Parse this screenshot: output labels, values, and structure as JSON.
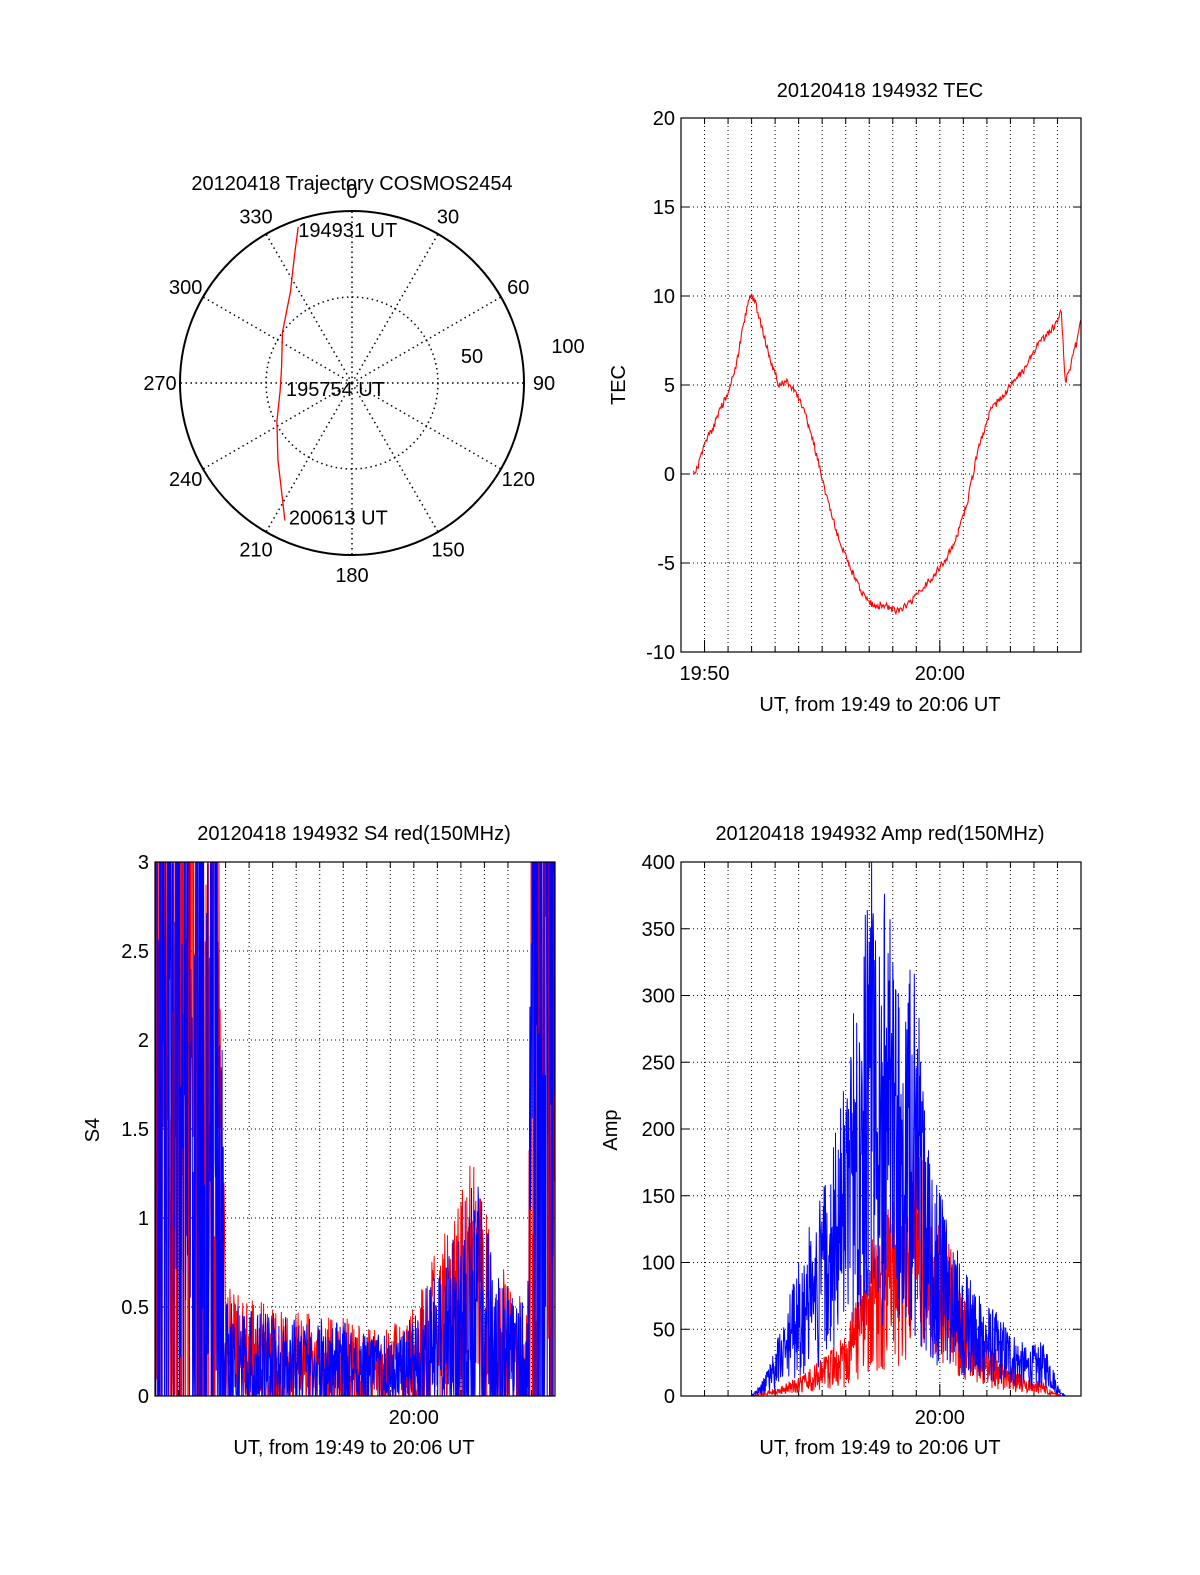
{
  "colors": {
    "red": "#ff0000",
    "blue": "#0000ff",
    "axis": "#000000",
    "grid": "#000000",
    "background": "#ffffff"
  },
  "chart_data": [
    {
      "id": "trajectory",
      "type": "polar",
      "title": "20120418 Trajectory COSMOS2454",
      "azimuth_labels": [
        "0",
        "30",
        "60",
        "90",
        "120",
        "150",
        "180",
        "210",
        "240",
        "270",
        "300",
        "330"
      ],
      "azimuth_values": [
        0,
        30,
        60,
        90,
        120,
        150,
        180,
        210,
        240,
        270,
        300,
        330
      ],
      "radius_labels": [
        "50",
        "100"
      ],
      "radius_values": [
        50,
        100
      ],
      "radius_range": [
        0,
        100
      ],
      "grid": true,
      "series": [
        {
          "color": "#ff0000",
          "points": [
            {
              "az": 341,
              "r": 96
            },
            {
              "az": 336,
              "r": 82
            },
            {
              "az": 326,
              "r": 64
            },
            {
              "az": 306,
              "r": 50
            },
            {
              "az": 283,
              "r": 42
            },
            {
              "az": 264,
              "r": 42
            },
            {
              "az": 243,
              "r": 49
            },
            {
              "az": 224,
              "r": 62
            },
            {
              "az": 206,
              "r": 89
            }
          ]
        }
      ],
      "annotations": [
        "194931 UT",
        "195754 UT",
        "200613 UT"
      ]
    },
    {
      "id": "tec",
      "type": "line",
      "title": "20120418 194932 TEC",
      "xlabel": "UT, from 19:49 to 20:06 UT",
      "ylabel": "TEC",
      "xlim": [
        "19:49",
        "20:06"
      ],
      "ylim": [
        -10,
        20
      ],
      "yticks": [
        "-10",
        "-5",
        "0",
        "5",
        "10",
        "15",
        "20"
      ],
      "xticks": [
        {
          "x": "19:50",
          "label": "19:50"
        },
        {
          "x": "20:00",
          "label": "20:00"
        }
      ],
      "grid": true,
      "series": [
        {
          "color": "#ff0000",
          "points": [
            [
              "19:49:32",
              0.0
            ],
            [
              "19:49:45",
              0.5
            ],
            [
              "19:50:00",
              1.8
            ],
            [
              "19:50:20",
              2.5
            ],
            [
              "19:50:40",
              3.6
            ],
            [
              "19:51:00",
              4.6
            ],
            [
              "19:51:20",
              6.0
            ],
            [
              "19:51:40",
              8.5
            ],
            [
              "19:51:55",
              10.1
            ],
            [
              "19:52:10",
              9.6
            ],
            [
              "19:52:30",
              7.9
            ],
            [
              "19:52:50",
              6.2
            ],
            [
              "19:53:10",
              5.0
            ],
            [
              "19:53:30",
              5.2
            ],
            [
              "19:53:50",
              4.6
            ],
            [
              "19:54:10",
              3.8
            ],
            [
              "19:54:30",
              2.4
            ],
            [
              "19:54:50",
              0.7
            ],
            [
              "19:55:10",
              -1.2
            ],
            [
              "19:55:40",
              -3.5
            ],
            [
              "19:56:10",
              -5.2
            ],
            [
              "19:56:40",
              -6.6
            ],
            [
              "19:57:10",
              -7.4
            ],
            [
              "19:57:40",
              -7.4
            ],
            [
              "19:58:10",
              -7.7
            ],
            [
              "19:58:40",
              -7.3
            ],
            [
              "19:59:10",
              -6.6
            ],
            [
              "19:59:40",
              -5.8
            ],
            [
              "20:00:10",
              -5.0
            ],
            [
              "20:00:40",
              -3.8
            ],
            [
              "20:01:10",
              -1.6
            ],
            [
              "20:01:40",
              1.6
            ],
            [
              "20:02:10",
              3.6
            ],
            [
              "20:02:40",
              4.4
            ],
            [
              "20:03:10",
              5.2
            ],
            [
              "20:03:40",
              6.0
            ],
            [
              "20:04:10",
              7.3
            ],
            [
              "20:04:40",
              8.0
            ],
            [
              "20:05:00",
              8.5
            ],
            [
              "20:05:10",
              9.2
            ],
            [
              "20:05:15",
              7.0
            ],
            [
              "20:05:20",
              5.2
            ],
            [
              "20:05:30",
              5.8
            ],
            [
              "20:05:40",
              6.9
            ],
            [
              "20:05:50",
              7.4
            ],
            [
              "20:06:00",
              8.8
            ]
          ]
        }
      ]
    },
    {
      "id": "s4",
      "type": "line",
      "title": "20120418 194932 S4 red(150MHz)",
      "xlabel": "UT, from 19:49 to 20:06 UT",
      "ylabel": "S4",
      "xlim": [
        "19:49",
        "20:06"
      ],
      "ylim": [
        0,
        3
      ],
      "yticks": [
        "0",
        "0.5",
        "1",
        "1.5",
        "2",
        "2.5",
        "3"
      ],
      "xticks": [
        {
          "x": "20:00",
          "label": "20:00"
        }
      ],
      "grid": true,
      "series": [
        {
          "color": "#ff0000",
          "points": [
            [
              "19:49:00",
              1.7
            ],
            [
              "19:50:00",
              1.8
            ],
            [
              "19:51:00",
              1.6
            ],
            [
              "19:51:40",
              1.3
            ],
            [
              "19:52:00",
              0.22
            ],
            [
              "19:53:00",
              0.2
            ],
            [
              "19:54:00",
              0.19
            ],
            [
              "19:55:00",
              0.18
            ],
            [
              "19:56:00",
              0.17
            ],
            [
              "19:57:00",
              0.16
            ],
            [
              "19:58:00",
              0.15
            ],
            [
              "19:59:00",
              0.14
            ],
            [
              "19:59:40",
              0.16
            ],
            [
              "20:00:20",
              0.22
            ],
            [
              "20:01:00",
              0.3
            ],
            [
              "20:01:40",
              0.36
            ],
            [
              "20:02:20",
              0.45
            ],
            [
              "20:02:40",
              0.55
            ],
            [
              "20:03:00",
              0.38
            ],
            [
              "20:03:40",
              0.28
            ],
            [
              "20:04:20",
              0.2
            ],
            [
              "20:04:50",
              0.22
            ],
            [
              "20:05:10",
              2.4
            ],
            [
              "20:06:00",
              2.6
            ]
          ]
        },
        {
          "color": "#0000ff",
          "points": [
            [
              "19:49:00",
              1.6
            ],
            [
              "19:50:00",
              1.7
            ],
            [
              "19:51:00",
              1.65
            ],
            [
              "19:51:40",
              1.4
            ],
            [
              "19:52:00",
              0.2
            ],
            [
              "19:53:00",
              0.18
            ],
            [
              "19:54:00",
              0.17
            ],
            [
              "19:55:00",
              0.17
            ],
            [
              "19:56:00",
              0.16
            ],
            [
              "19:57:00",
              0.15
            ],
            [
              "19:58:00",
              0.13
            ],
            [
              "19:59:00",
              0.12
            ],
            [
              "19:59:40",
              0.14
            ],
            [
              "20:00:20",
              0.2
            ],
            [
              "20:01:00",
              0.26
            ],
            [
              "20:01:40",
              0.33
            ],
            [
              "20:02:20",
              0.42
            ],
            [
              "20:02:40",
              0.47
            ],
            [
              "20:03:00",
              0.35
            ],
            [
              "20:03:40",
              0.26
            ],
            [
              "20:04:20",
              0.18
            ],
            [
              "20:04:50",
              0.2
            ],
            [
              "20:05:10",
              2.2
            ],
            [
              "20:06:00",
              2.5
            ]
          ]
        }
      ]
    },
    {
      "id": "amp",
      "type": "line",
      "title": "20120418 194932 Amp red(150MHz)",
      "xlabel": "UT, from 19:49 to 20:06 UT",
      "ylabel": "Amp",
      "xlim": [
        "19:49",
        "20:06"
      ],
      "ylim": [
        0,
        400
      ],
      "yticks": [
        "0",
        "50",
        "100",
        "150",
        "200",
        "250",
        "300",
        "350",
        "400"
      ],
      "xticks": [
        {
          "x": "20:00",
          "label": "20:00"
        }
      ],
      "grid": true,
      "series": [
        {
          "color": "#ff0000",
          "points": [
            [
              "19:49:30",
              0
            ],
            [
              "19:52:00",
              0
            ],
            [
              "19:53:00",
              3
            ],
            [
              "19:54:00",
              8
            ],
            [
              "19:55:00",
              15
            ],
            [
              "19:56:00",
              25
            ],
            [
              "19:56:40",
              50
            ],
            [
              "19:57:20",
              70
            ],
            [
              "19:58:00",
              85
            ],
            [
              "19:58:40",
              90
            ],
            [
              "19:59:00",
              110
            ],
            [
              "19:59:40",
              85
            ],
            [
              "20:00:20",
              65
            ],
            [
              "20:01:00",
              45
            ],
            [
              "20:01:40",
              30
            ],
            [
              "20:02:20",
              20
            ],
            [
              "20:03:00",
              12
            ],
            [
              "20:03:40",
              8
            ],
            [
              "20:04:20",
              6
            ],
            [
              "20:04:50",
              2
            ],
            [
              "20:05:10",
              0
            ]
          ]
        },
        {
          "color": "#0000ff",
          "points": [
            [
              "19:49:30",
              0
            ],
            [
              "19:52:00",
              0
            ],
            [
              "19:52:40",
              10
            ],
            [
              "19:53:20",
              30
            ],
            [
              "19:54:00",
              55
            ],
            [
              "19:54:40",
              75
            ],
            [
              "19:55:20",
              95
            ],
            [
              "19:56:00",
              135
            ],
            [
              "19:56:40",
              190
            ],
            [
              "19:57:00",
              250
            ],
            [
              "19:57:20",
              170
            ],
            [
              "19:57:40",
              210
            ],
            [
              "19:58:00",
              195
            ],
            [
              "19:58:20",
              160
            ],
            [
              "19:58:40",
              180
            ],
            [
              "19:59:00",
              175
            ],
            [
              "19:59:20",
              120
            ],
            [
              "19:59:40",
              95
            ],
            [
              "20:00:20",
              72
            ],
            [
              "20:01:00",
              55
            ],
            [
              "20:01:40",
              42
            ],
            [
              "20:02:20",
              35
            ],
            [
              "20:03:00",
              28
            ],
            [
              "20:03:40",
              20
            ],
            [
              "20:04:20",
              22
            ],
            [
              "20:04:40",
              18
            ],
            [
              "20:05:00",
              5
            ],
            [
              "20:05:20",
              0
            ],
            [
              "20:06:00",
              0
            ]
          ]
        }
      ]
    }
  ]
}
